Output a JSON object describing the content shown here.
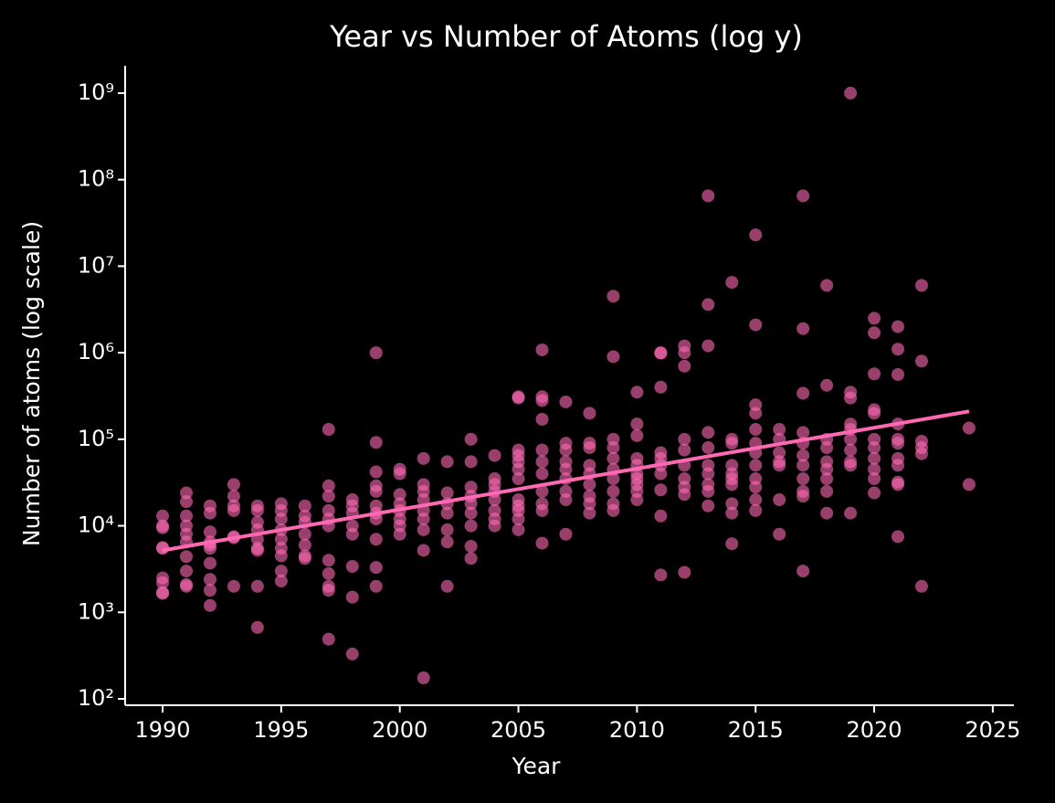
{
  "chart_data": {
    "type": "scatter",
    "title": "Year vs Number of Atoms (log y)",
    "x_label": "Year",
    "y_label": "Number of atoms (log scale)",
    "log_y": true,
    "xlim": [
      1988.42,
      2025.89
    ],
    "ylim": [
      84.4,
      2070000000
    ],
    "xticks": [
      1990,
      1995,
      2000,
      2005,
      2010,
      2015,
      2020,
      2025
    ],
    "yticks": [
      {
        "value": 100,
        "label": "10²"
      },
      {
        "value": 1000,
        "label": "10³"
      },
      {
        "value": 10000,
        "label": "10⁴"
      },
      {
        "value": 100000,
        "label": "10⁵"
      },
      {
        "value": 1000000,
        "label": "10⁶"
      },
      {
        "value": 10000000,
        "label": "10⁷"
      },
      {
        "value": 100000000,
        "label": "10⁸"
      },
      {
        "value": 1000000000,
        "label": "10⁹"
      }
    ],
    "series": [
      {
        "kind": "points",
        "color": "#ff69b4",
        "x": [
          1990,
          1990,
          1990,
          1990,
          1990,
          1990,
          1990,
          1990,
          1990,
          1991,
          1991,
          1991,
          1991,
          1991,
          1991,
          1991,
          1991,
          1991,
          1991,
          1992,
          1992,
          1992,
          1992,
          1992,
          1992,
          1992,
          1992,
          1992,
          1992,
          1993,
          1993,
          1993,
          1993,
          1993,
          1993,
          1993,
          1994,
          1994,
          1994,
          1994,
          1994,
          1994,
          1994,
          1994,
          1994,
          1995,
          1995,
          1995,
          1995,
          1995,
          1995,
          1995,
          1995,
          1995,
          1996,
          1996,
          1996,
          1996,
          1996,
          1996,
          1996,
          1997,
          1997,
          1997,
          1997,
          1997,
          1997,
          1997,
          1997,
          1997,
          1997,
          1997,
          1998,
          1998,
          1998,
          1998,
          1998,
          1998,
          1998,
          1998,
          1999,
          1999,
          1999,
          1999,
          1999,
          1999,
          1999,
          1999,
          1999,
          1999,
          1999,
          2000,
          2000,
          2000,
          2000,
          2000,
          2000,
          2000,
          2000,
          2001,
          2001,
          2001,
          2001,
          2001,
          2001,
          2001,
          2001,
          2001,
          2002,
          2002,
          2002,
          2002,
          2002,
          2002,
          2002,
          2003,
          2003,
          2003,
          2003,
          2003,
          2003,
          2003,
          2003,
          2003,
          2004,
          2004,
          2004,
          2004,
          2004,
          2004,
          2004,
          2004,
          2005,
          2005,
          2005,
          2005,
          2005,
          2005,
          2005,
          2005,
          2005,
          2005,
          2005,
          2005,
          2006,
          2006,
          2006,
          2006,
          2006,
          2006,
          2006,
          2006,
          2006,
          2006,
          2006,
          2007,
          2007,
          2007,
          2007,
          2007,
          2007,
          2007,
          2007,
          2007,
          2008,
          2008,
          2008,
          2008,
          2008,
          2008,
          2008,
          2008,
          2008,
          2009,
          2009,
          2009,
          2009,
          2009,
          2009,
          2009,
          2009,
          2009,
          2009,
          2010,
          2010,
          2010,
          2010,
          2010,
          2010,
          2010,
          2010,
          2010,
          2010,
          2011,
          2011,
          2011,
          2011,
          2011,
          2011,
          2011,
          2011,
          2011,
          2011,
          2012,
          2012,
          2012,
          2012,
          2012,
          2012,
          2012,
          2012,
          2012,
          2012,
          2013,
          2013,
          2013,
          2013,
          2013,
          2013,
          2013,
          2013,
          2013,
          2013,
          2014,
          2014,
          2014,
          2014,
          2014,
          2014,
          2014,
          2014,
          2014,
          2014,
          2015,
          2015,
          2015,
          2015,
          2015,
          2015,
          2015,
          2015,
          2015,
          2015,
          2015,
          2015,
          2016,
          2016,
          2016,
          2016,
          2016,
          2016,
          2016,
          2017,
          2017,
          2017,
          2017,
          2017,
          2017,
          2017,
          2017,
          2017,
          2017,
          2017,
          2018,
          2018,
          2018,
          2018,
          2018,
          2018,
          2018,
          2018,
          2018,
          2019,
          2019,
          2019,
          2019,
          2019,
          2019,
          2019,
          2019,
          2019,
          2019,
          2020,
          2020,
          2020,
          2020,
          2020,
          2020,
          2020,
          2020,
          2020,
          2020,
          2020,
          2021,
          2021,
          2021,
          2021,
          2021,
          2021,
          2021,
          2021,
          2021,
          2021,
          2021,
          2022,
          2022,
          2022,
          2022,
          2022,
          2022,
          2024,
          2024
        ],
        "values": [
          13000,
          10000,
          9500,
          5600,
          5500,
          2500,
          2200,
          1700,
          1650,
          24000,
          19000,
          13000,
          10000,
          8000,
          6500,
          4400,
          3000,
          2000,
          2100,
          17000,
          14000,
          8500,
          6500,
          6000,
          5500,
          3700,
          2400,
          1800,
          1200,
          30000,
          22000,
          17000,
          15000,
          7500,
          7300,
          2000,
          17000,
          15000,
          11000,
          9000,
          7000,
          5500,
          5200,
          2000,
          670,
          18000,
          15000,
          12000,
          9000,
          7000,
          5500,
          4500,
          3000,
          2300,
          17000,
          13000,
          11000,
          8000,
          6000,
          4500,
          4200,
          130000,
          29000,
          22000,
          15000,
          12000,
          10000,
          4000,
          2800,
          2000,
          1800,
          490,
          20000,
          17000,
          14000,
          10000,
          8000,
          3400,
          1500,
          330,
          1000000,
          92000,
          42000,
          29000,
          25000,
          17000,
          14000,
          12000,
          7000,
          3300,
          2000,
          45000,
          40000,
          23000,
          18000,
          15000,
          12000,
          10000,
          8000,
          60000,
          30000,
          25000,
          20000,
          15000,
          12000,
          9000,
          5200,
          175,
          55000,
          24000,
          18000,
          14000,
          9000,
          6500,
          2000,
          100000,
          55000,
          28000,
          22000,
          18000,
          14000,
          10000,
          5800,
          4200,
          65000,
          35000,
          30000,
          25000,
          20000,
          15000,
          12000,
          10000,
          310000,
          300000,
          75000,
          65000,
          55000,
          45000,
          35000,
          20000,
          17000,
          15000,
          12000,
          9000,
          1080000,
          310000,
          280000,
          170000,
          75000,
          55000,
          40000,
          25000,
          18000,
          15000,
          6300,
          270000,
          90000,
          75000,
          55000,
          45000,
          35000,
          25000,
          20000,
          8000,
          200000,
          90000,
          80000,
          50000,
          40000,
          30000,
          22000,
          18000,
          14000,
          4500000,
          900000,
          100000,
          80000,
          60000,
          45000,
          35000,
          25000,
          18000,
          15000,
          350000,
          150000,
          110000,
          60000,
          50000,
          40000,
          35000,
          30000,
          25000,
          20000,
          1000000,
          990000,
          400000,
          70000,
          60000,
          50000,
          40000,
          26000,
          13000,
          2700,
          1200000,
          1000000,
          700000,
          100000,
          75000,
          50000,
          35000,
          28000,
          23000,
          2900,
          65000000,
          3600000,
          1200000,
          120000,
          80000,
          50000,
          40000,
          30000,
          25000,
          17000,
          6500000,
          100000,
          90000,
          50000,
          40000,
          35000,
          30000,
          18000,
          14000,
          6200,
          23000000,
          2100000,
          250000,
          200000,
          130000,
          90000,
          70000,
          50000,
          35000,
          28000,
          20000,
          15000,
          130000,
          100000,
          70000,
          55000,
          50000,
          20000,
          8000,
          65000000,
          1900000,
          340000,
          120000,
          90000,
          65000,
          50000,
          35000,
          25000,
          22000,
          3000,
          6000000,
          420000,
          100000,
          80000,
          55000,
          45000,
          35000,
          25000,
          14000,
          1000000000,
          350000,
          300000,
          150000,
          130000,
          100000,
          75000,
          55000,
          50000,
          14000,
          2500000,
          1700000,
          570000,
          220000,
          200000,
          100000,
          80000,
          60000,
          45000,
          35000,
          24000,
          2000000,
          1100000,
          560000,
          150000,
          100000,
          90000,
          60000,
          50000,
          32000,
          30000,
          7500,
          6000000,
          800000,
          95000,
          80000,
          68000,
          2000,
          135000,
          30000
        ]
      },
      {
        "kind": "line",
        "color": "#ff69b4",
        "x": [
          1990,
          2024
        ],
        "values": [
          5200,
          210000
        ]
      }
    ]
  }
}
